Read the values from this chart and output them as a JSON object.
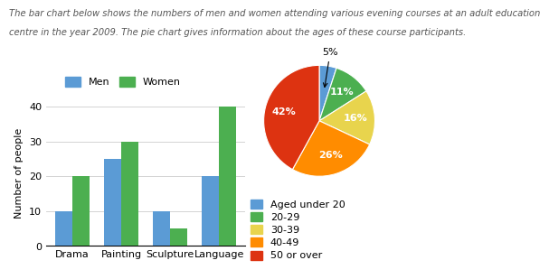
{
  "title_line1": "The bar chart below shows the numbers of men and women attending various evening courses at an adult education",
  "title_line2": "centre in the year 2009. The pie chart gives information about the ages of these course participants.",
  "bar_categories": [
    "Drama",
    "Painting",
    "Sculpture",
    "Language"
  ],
  "men_values": [
    10,
    25,
    10,
    20
  ],
  "women_values": [
    20,
    30,
    5,
    40
  ],
  "men_color": "#5B9BD5",
  "women_color": "#4CAF50",
  "bar_ylabel": "Number of people",
  "bar_ylim": [
    0,
    42
  ],
  "bar_yticks": [
    0,
    10,
    20,
    30,
    40
  ],
  "pie_values": [
    5,
    11,
    16,
    26,
    42
  ],
  "pie_pct_labels": [
    "5%",
    "11%",
    "16%",
    "26%",
    "42%"
  ],
  "pie_colors": [
    "#5B9BD5",
    "#4CAF50",
    "#E8D44D",
    "#FF8C00",
    "#DD3311"
  ],
  "pie_legend_labels": [
    "Aged under 20",
    "20-29",
    "30-39",
    "40-49",
    "50 or over"
  ],
  "pie_legend_colors": [
    "#5B9BD5",
    "#4CAF50",
    "#E8D44D",
    "#FF8C00",
    "#DD3311"
  ],
  "bg_color": "#FFFFFF",
  "title_fontsize": 7.2,
  "label_fontsize": 8,
  "tick_fontsize": 8,
  "legend_fontsize": 8,
  "pie_label_fontsize": 8
}
